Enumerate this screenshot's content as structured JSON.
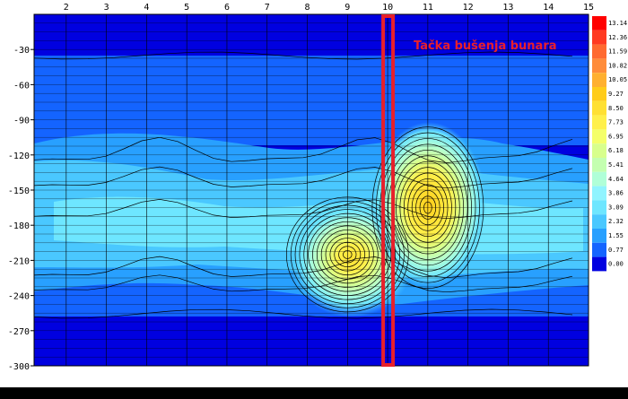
{
  "chart_data": {
    "type": "heatmap",
    "title": "",
    "xlabel": "",
    "ylabel": "",
    "x_ticks": [
      2,
      3,
      4,
      5,
      6,
      7,
      8,
      9,
      10,
      11,
      12,
      13,
      14,
      15
    ],
    "y_ticks": [
      -30,
      -60,
      -90,
      -120,
      -150,
      -180,
      -210,
      -240,
      -270,
      -300
    ],
    "xlim": [
      1.2,
      15
    ],
    "ylim": [
      -300,
      0
    ],
    "grid": true,
    "colorbar": {
      "levels": [
        "13.14",
        "12.36",
        "11.59",
        "10.82",
        "10.05",
        "9.27",
        "8.50",
        "7.73",
        "6.95",
        "6.18",
        "5.41",
        "4.64",
        "3.86",
        "3.09",
        "2.32",
        "1.55",
        "0.77",
        "0.00"
      ],
      "colors": [
        "#ff0000",
        "#ff3a22",
        "#ff6a30",
        "#ff8c3a",
        "#ffb030",
        "#ffcc1a",
        "#ffe033",
        "#fff04a",
        "#f4ff6a",
        "#d8ff8c",
        "#c4ffb0",
        "#b0ffd8",
        "#90f4ff",
        "#6ee6ff",
        "#4ac8ff",
        "#28a0ff",
        "#1464ff",
        "#0000e0"
      ]
    },
    "highlight": {
      "label": "Tačka bušenja bunara",
      "x": 10,
      "color": "#e8202a"
    },
    "anomalies": [
      {
        "x": 9.0,
        "y": -205,
        "peak": 7.7
      },
      {
        "x": 11.0,
        "y": -165,
        "peak": 8.5
      }
    ]
  }
}
